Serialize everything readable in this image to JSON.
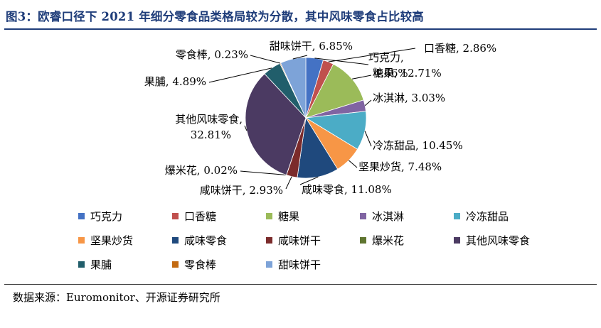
{
  "title": "图3：欧睿口径下 2021 年细分零食品类格局较为分散，其中风味零食占比较高",
  "source": "数据来源：Euromonitor、开源证券研究所",
  "chart_data": {
    "type": "pie",
    "categories": [
      "巧克力",
      "口香糖",
      "糖果",
      "冰淇淋",
      "冷冻甜品",
      "坚果炒货",
      "咸味零食",
      "咸味饼干",
      "爆米花",
      "其他风味零食",
      "果脯",
      "零食棒",
      "甜味饼干"
    ],
    "values": [
      4.66,
      2.86,
      12.71,
      3.03,
      10.45,
      7.48,
      11.08,
      2.93,
      0.02,
      32.81,
      4.89,
      0.23,
      6.85
    ],
    "unit": "%",
    "colors": [
      "#4472c4",
      "#c0504d",
      "#9bbb59",
      "#8064a2",
      "#4bacc6",
      "#f79646",
      "#1f497d",
      "#7b2b2b",
      "#5f7530",
      "#4b3a62",
      "#215e6b",
      "#c36a12",
      "#7da3d8"
    ],
    "data_labels": [
      {
        "name": "巧克力,",
        "value": "4.66%"
      },
      {
        "name": "口香糖,",
        "value": "2.86%"
      },
      {
        "name": "糖果,",
        "value": "12.71%"
      },
      {
        "name": "冰淇淋,",
        "value": "3.03%"
      },
      {
        "name": "冷冻甜品,",
        "value": "10.45%"
      },
      {
        "name": "坚果炒货,",
        "value": "7.48%"
      },
      {
        "name": "咸味零食,",
        "value": "11.08%"
      },
      {
        "name": "咸味饼干,",
        "value": "2.93%"
      },
      {
        "name": "爆米花,",
        "value": "0.02%"
      },
      {
        "name": "其他风味零食,",
        "value": "32.81%"
      },
      {
        "name": "果脯,",
        "value": "4.89%"
      },
      {
        "name": "零食棒,",
        "value": "0.23%"
      },
      {
        "name": "甜味饼干,",
        "value": "6.85%"
      }
    ],
    "legend": {
      "position": "bottom"
    }
  }
}
